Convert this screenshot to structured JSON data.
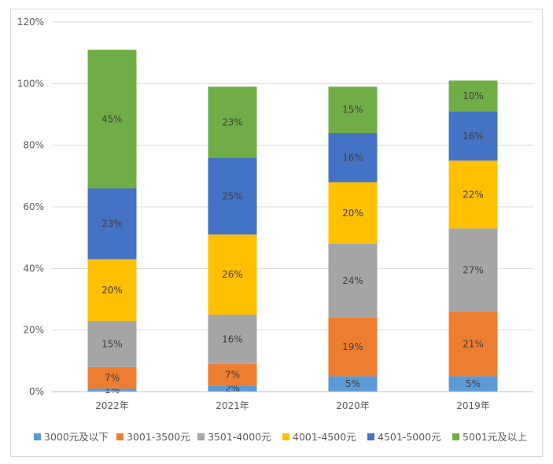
{
  "chart_data": {
    "type": "bar",
    "stacked": true,
    "title": "",
    "xlabel": "",
    "ylabel": "",
    "ylim": [
      0,
      120
    ],
    "yticks": [
      "0%",
      "20%",
      "40%",
      "60%",
      "80%",
      "100%",
      "120%"
    ],
    "ytick_values": [
      0,
      20,
      40,
      60,
      80,
      100,
      120
    ],
    "grid": true,
    "legend_position": "bottom",
    "categories": [
      "2022年",
      "2021年",
      "2020年",
      "2019年"
    ],
    "series": [
      {
        "name": "3000元及以下",
        "color": "#5b9bd5",
        "values": [
          1,
          2,
          5,
          5
        ],
        "labels": [
          "1%",
          "2%",
          "5%",
          "5%"
        ]
      },
      {
        "name": "3001-3500元",
        "color": "#ed7d31",
        "values": [
          7,
          7,
          19,
          21
        ],
        "labels": [
          "7%",
          "7%",
          "19%",
          "21%"
        ]
      },
      {
        "name": "3501-4000元",
        "color": "#a5a5a5",
        "values": [
          15,
          16,
          24,
          27
        ],
        "labels": [
          "15%",
          "16%",
          "24%",
          "27%"
        ]
      },
      {
        "name": "4001-4500元",
        "color": "#ffc000",
        "values": [
          20,
          26,
          20,
          22
        ],
        "labels": [
          "20%",
          "26%",
          "20%",
          "22%"
        ]
      },
      {
        "name": "4501-5000元",
        "color": "#4472c4",
        "values": [
          23,
          25,
          16,
          16
        ],
        "labels": [
          "23%",
          "25%",
          "16%",
          "16%"
        ]
      },
      {
        "name": "5001元及以上",
        "color": "#70ad47",
        "values": [
          45,
          23,
          15,
          10
        ],
        "labels": [
          "45%",
          "23%",
          "15%",
          "10%"
        ]
      }
    ]
  }
}
